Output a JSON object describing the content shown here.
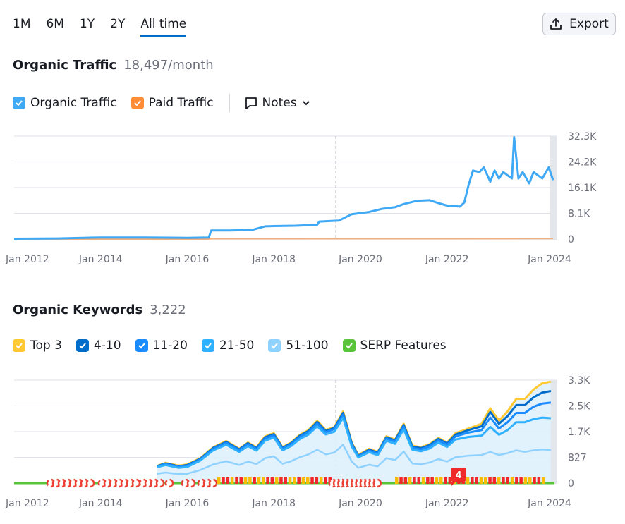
{
  "range_tabs": [
    "1M",
    "6M",
    "1Y",
    "2Y",
    "All time"
  ],
  "active_tab": "All time",
  "export_label": "Export",
  "traffic": {
    "title": "Organic Traffic",
    "value": "18,497/month",
    "legend": {
      "organic": "Organic Traffic",
      "paid": "Paid Traffic",
      "notes": "Notes"
    }
  },
  "keywords": {
    "title": "Organic Keywords",
    "value": "3,222",
    "legend": [
      "Top 3",
      "4-10",
      "11-20",
      "21-50",
      "51-100",
      "SERP Features"
    ],
    "badge": "4"
  },
  "colors": {
    "organic": "#3fa9f5",
    "paid": "#ff8c37",
    "top3": "#ffc933",
    "k4_10": "#006dca",
    "k11_20": "#1a8cff",
    "k21_50": "#2fb1ff",
    "k51_100": "#8fd1ff",
    "serp": "#59c43a",
    "flag": "#f02a2a"
  },
  "chart_data": [
    {
      "type": "line",
      "title": "Organic Traffic",
      "ylim": [
        0,
        32300
      ],
      "y_ticks": [
        "32.3K",
        "24.2K",
        "16.1K",
        "8.1K",
        "0"
      ],
      "x_ticks": [
        "Jan 2012",
        "Jan 2014",
        "Jan 2016",
        "Jan 2018",
        "Jan 2020",
        "Jan 2022",
        "Jan 2024"
      ],
      "series": [
        {
          "name": "Organic Traffic",
          "points": [
            [
              2012.0,
              100
            ],
            [
              2013.0,
              200
            ],
            [
              2014.0,
              500
            ],
            [
              2015.0,
              500
            ],
            [
              2016.0,
              400
            ],
            [
              2016.5,
              500
            ],
            [
              2016.55,
              2700
            ],
            [
              2017.0,
              2700
            ],
            [
              2017.5,
              2900
            ],
            [
              2017.8,
              4000
            ],
            [
              2018.0,
              4100
            ],
            [
              2018.5,
              4200
            ],
            [
              2019.0,
              4500
            ],
            [
              2019.05,
              5500
            ],
            [
              2019.5,
              5800
            ],
            [
              2019.8,
              7800
            ],
            [
              2020.2,
              8500
            ],
            [
              2020.5,
              9500
            ],
            [
              2020.8,
              10000
            ],
            [
              2021.0,
              11000
            ],
            [
              2021.3,
              12000
            ],
            [
              2021.6,
              12200
            ],
            [
              2021.8,
              11300
            ],
            [
              2022.0,
              10500
            ],
            [
              2022.3,
              10200
            ],
            [
              2022.4,
              11500
            ],
            [
              2022.5,
              17000
            ],
            [
              2022.6,
              21500
            ],
            [
              2022.75,
              21000
            ],
            [
              2022.85,
              22500
            ],
            [
              2023.0,
              18000
            ],
            [
              2023.1,
              21500
            ],
            [
              2023.2,
              19000
            ],
            [
              2023.3,
              21000
            ],
            [
              2023.5,
              19000
            ],
            [
              2023.55,
              32000
            ],
            [
              2023.65,
              19000
            ],
            [
              2023.75,
              21000
            ],
            [
              2023.9,
              17500
            ],
            [
              2024.0,
              21000
            ],
            [
              2024.2,
              19000
            ],
            [
              2024.35,
              22500
            ],
            [
              2024.45,
              18500
            ]
          ]
        },
        {
          "name": "Paid Traffic",
          "points": [
            [
              2012.0,
              0
            ],
            [
              2016.5,
              0
            ],
            [
              2016.55,
              120
            ],
            [
              2024.45,
              150
            ]
          ]
        }
      ]
    },
    {
      "type": "area",
      "title": "Organic Keywords",
      "ylim": [
        0,
        3300
      ],
      "y_ticks": [
        "3.3K",
        "2.5K",
        "1.7K",
        "827",
        "0"
      ],
      "x_ticks": [
        "Jan 2012",
        "Jan 2014",
        "Jan 2016",
        "Jan 2018",
        "Jan 2020",
        "Jan 2022",
        "Jan 2024"
      ],
      "x": [
        2015.3,
        2015.5,
        2015.8,
        2016.0,
        2016.3,
        2016.6,
        2016.9,
        2017.2,
        2017.4,
        2017.6,
        2017.8,
        2018.0,
        2018.2,
        2018.4,
        2018.6,
        2018.8,
        2019.0,
        2019.2,
        2019.4,
        2019.6,
        2019.8,
        2019.95,
        2020.2,
        2020.4,
        2020.6,
        2020.8,
        2021.0,
        2021.2,
        2021.4,
        2021.6,
        2021.8,
        2022.0,
        2022.2,
        2022.5,
        2022.8,
        2023.0,
        2023.2,
        2023.4,
        2023.6,
        2023.8,
        2024.0,
        2024.2,
        2024.4
      ],
      "series": [
        {
          "name": "Top 3",
          "values": [
            550,
            650,
            560,
            600,
            800,
            1150,
            1350,
            1100,
            1300,
            1150,
            1500,
            1600,
            1150,
            1300,
            1550,
            1700,
            2000,
            1700,
            1800,
            2300,
            1300,
            900,
            1100,
            1000,
            1500,
            1400,
            1900,
            1200,
            1150,
            1250,
            1450,
            1300,
            1600,
            1750,
            1900,
            2400,
            2000,
            2300,
            2700,
            2700,
            3000,
            3200,
            3250
          ]
        },
        {
          "name": "4-10",
          "values": [
            540,
            630,
            540,
            580,
            780,
            1130,
            1320,
            1080,
            1280,
            1120,
            1470,
            1570,
            1130,
            1280,
            1520,
            1670,
            1960,
            1670,
            1770,
            2250,
            1270,
            880,
            1070,
            980,
            1470,
            1370,
            1860,
            1170,
            1120,
            1220,
            1420,
            1270,
            1560,
            1700,
            1820,
            2280,
            1900,
            2150,
            2500,
            2500,
            2750,
            2900,
            2950
          ]
        },
        {
          "name": "11-20",
          "values": [
            530,
            610,
            520,
            560,
            760,
            1100,
            1290,
            1050,
            1250,
            1090,
            1430,
            1530,
            1100,
            1250,
            1480,
            1630,
            1910,
            1630,
            1730,
            2190,
            1230,
            860,
            1040,
            950,
            1430,
            1330,
            1810,
            1130,
            1080,
            1180,
            1370,
            1230,
            1500,
            1620,
            1700,
            2100,
            1750,
            1950,
            2250,
            2250,
            2450,
            2550,
            2580
          ]
        },
        {
          "name": "21-50",
          "values": [
            510,
            580,
            490,
            520,
            720,
            1050,
            1230,
            1000,
            1190,
            1040,
            1360,
            1460,
            1050,
            1190,
            1410,
            1560,
            1820,
            1560,
            1650,
            2090,
            1170,
            820,
            990,
            900,
            1360,
            1260,
            1720,
            1070,
            1020,
            1110,
            1300,
            1160,
            1400,
            1480,
            1520,
            1800,
            1550,
            1700,
            1950,
            1950,
            2050,
            2100,
            2080
          ]
        },
        {
          "name": "51-100",
          "values": [
            300,
            340,
            290,
            300,
            420,
            600,
            700,
            580,
            690,
            610,
            800,
            860,
            620,
            700,
            830,
            920,
            1070,
            920,
            980,
            1230,
            690,
            490,
            590,
            540,
            800,
            740,
            1010,
            630,
            600,
            660,
            770,
            690,
            830,
            880,
            900,
            1000,
            900,
            960,
            1050,
            1000,
            1050,
            1080,
            1060
          ]
        }
      ]
    }
  ]
}
